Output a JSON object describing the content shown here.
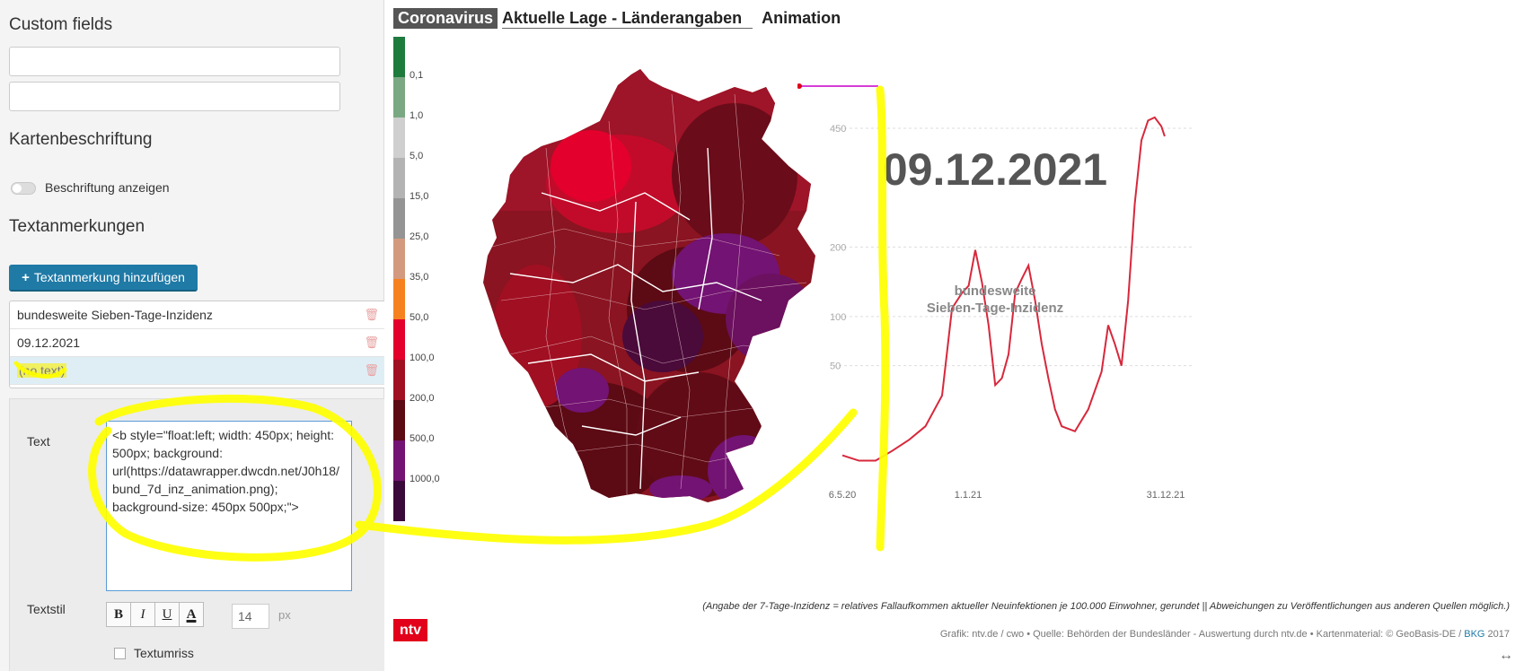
{
  "left": {
    "custom_fields_title": "Custom fields",
    "map_labels_title": "Kartenbeschriftung",
    "toggle_label": "Beschriftung anzeigen",
    "annotations_title": "Textanmerkungen",
    "add_button_label": "Textanmerkung hinzufügen",
    "annotations": [
      {
        "label": "bundesweite Sieben-Tage-Inzidenz"
      },
      {
        "label": "09.12.2021"
      },
      {
        "label": "(no text)"
      }
    ],
    "text_label": "Text",
    "text_value": "<b style=\"float:left; width: 450px; height: 500px; background: url(https://datawrapper.dwcdn.net/J0h18/bund_7d_inz_animation.png); background-size: 450px 500px;\">",
    "style_label": "Textstil",
    "style_buttons": [
      "B",
      "I",
      "U",
      "A"
    ],
    "font_size": "14",
    "font_unit": "px",
    "outline_label": "Textumriss"
  },
  "preview": {
    "nav": {
      "coronavirus": "Coronavirus",
      "lage": "Aktuelle Lage - Länderangaben",
      "animation": "Animation"
    },
    "legend": [
      {
        "label": "0,1",
        "color": "#1e7b3e"
      },
      {
        "label": "1,0",
        "color": "#7aa882"
      },
      {
        "label": "5,0",
        "color": "#cfcfcf"
      },
      {
        "label": "15,0",
        "color": "#b3b3b3"
      },
      {
        "label": "25,0",
        "color": "#949494"
      },
      {
        "label": "35,0",
        "color": "#d39a7f"
      },
      {
        "label": "50,0",
        "color": "#f5821f"
      },
      {
        "label": "100,0",
        "color": "#e3002c"
      },
      {
        "label": "200,0",
        "color": "#a10f22"
      },
      {
        "label": "500,0",
        "color": "#5c0a14"
      },
      {
        "label": "1000,0",
        "color": "#731373"
      },
      {
        "label": "",
        "color": "#3a0a3a"
      }
    ],
    "date": "09.12.2021",
    "chart_subtitle_1": "bundesweite",
    "chart_subtitle_2": "Sieben-Tage-Inzidenz",
    "source_note": "(Angabe der 7-Tage-Inzidenz = relatives Fallaufkommen aktueller Neuinfektionen je 100.000 Einwohner, gerundet || Abweichungen zu Veröffentlichungen aus anderen Quellen möglich.)",
    "logo": "ntv",
    "credit_main": "Grafik: ntv.de / cwo • Quelle: Behörden der Bundesländer - Auswertung durch ntv.de • Kartenmaterial: © GeoBasis-DE / ",
    "credit_bkg": "BKG",
    "credit_year": " 2017",
    "accent_color": "#e2001a"
  },
  "chart_data": {
    "type": "line",
    "x_ticks": [
      "6.5.20",
      "1.1.21",
      "31.12.21"
    ],
    "y_ticks": [
      50,
      100,
      200,
      450
    ],
    "series": [
      {
        "color": "#d7283c",
        "x": [
          0,
          0.05,
          0.1,
          0.15,
          0.2,
          0.25,
          0.3,
          0.33,
          0.36,
          0.38,
          0.4,
          0.42,
          0.44,
          0.46,
          0.48,
          0.5,
          0.52,
          0.54,
          0.56,
          0.58,
          0.6,
          0.62,
          0.64,
          0.66,
          0.7,
          0.74,
          0.78,
          0.8,
          0.82,
          0.84,
          0.86,
          0.88,
          0.9,
          0.92,
          0.94,
          0.96,
          0.97
        ],
        "y": [
          3,
          2,
          2,
          4,
          7,
          12,
          28,
          110,
          130,
          140,
          195,
          145,
          90,
          35,
          40,
          60,
          130,
          150,
          170,
          120,
          70,
          40,
          20,
          12,
          10,
          20,
          45,
          90,
          70,
          50,
          120,
          280,
          420,
          470,
          478,
          455,
          430
        ]
      }
    ]
  }
}
